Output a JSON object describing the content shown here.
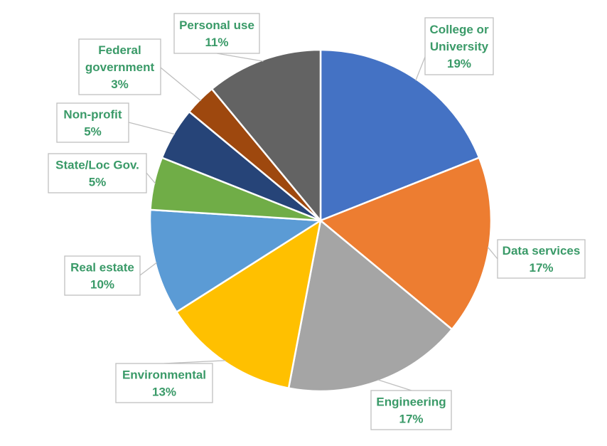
{
  "chart_data": {
    "type": "pie",
    "title": "",
    "label_color": "#3a9a68",
    "slices": [
      {
        "name": "College or University",
        "label_lines": [
          "College or",
          "University"
        ],
        "value": 19,
        "pct_label": "19%",
        "color": "#4472c4"
      },
      {
        "name": "Data services",
        "label_lines": [
          "Data services"
        ],
        "value": 17,
        "pct_label": "17%",
        "color": "#ed7d31"
      },
      {
        "name": "Engineering",
        "label_lines": [
          "Engineering"
        ],
        "value": 17,
        "pct_label": "17%",
        "color": "#a5a5a5"
      },
      {
        "name": "Environmental",
        "label_lines": [
          "Environmental"
        ],
        "value": 13,
        "pct_label": "13%",
        "color": "#ffc000"
      },
      {
        "name": "Real estate",
        "label_lines": [
          "Real estate"
        ],
        "value": 10,
        "pct_label": "10%",
        "color": "#5b9bd5"
      },
      {
        "name": "State/Loc Gov.",
        "label_lines": [
          "State/Loc Gov."
        ],
        "value": 5,
        "pct_label": "5%",
        "color": "#70ad47"
      },
      {
        "name": "Non-profit",
        "label_lines": [
          "Non-profit"
        ],
        "value": 5,
        "pct_label": "5%",
        "color": "#264478"
      },
      {
        "name": "Federal government",
        "label_lines": [
          "Federal",
          "government"
        ],
        "value": 3,
        "pct_label": "3%",
        "color": "#9e480e"
      },
      {
        "name": "Personal use",
        "label_lines": [
          "Personal use"
        ],
        "value": 11,
        "pct_label": "11%",
        "color": "#636363"
      }
    ]
  }
}
